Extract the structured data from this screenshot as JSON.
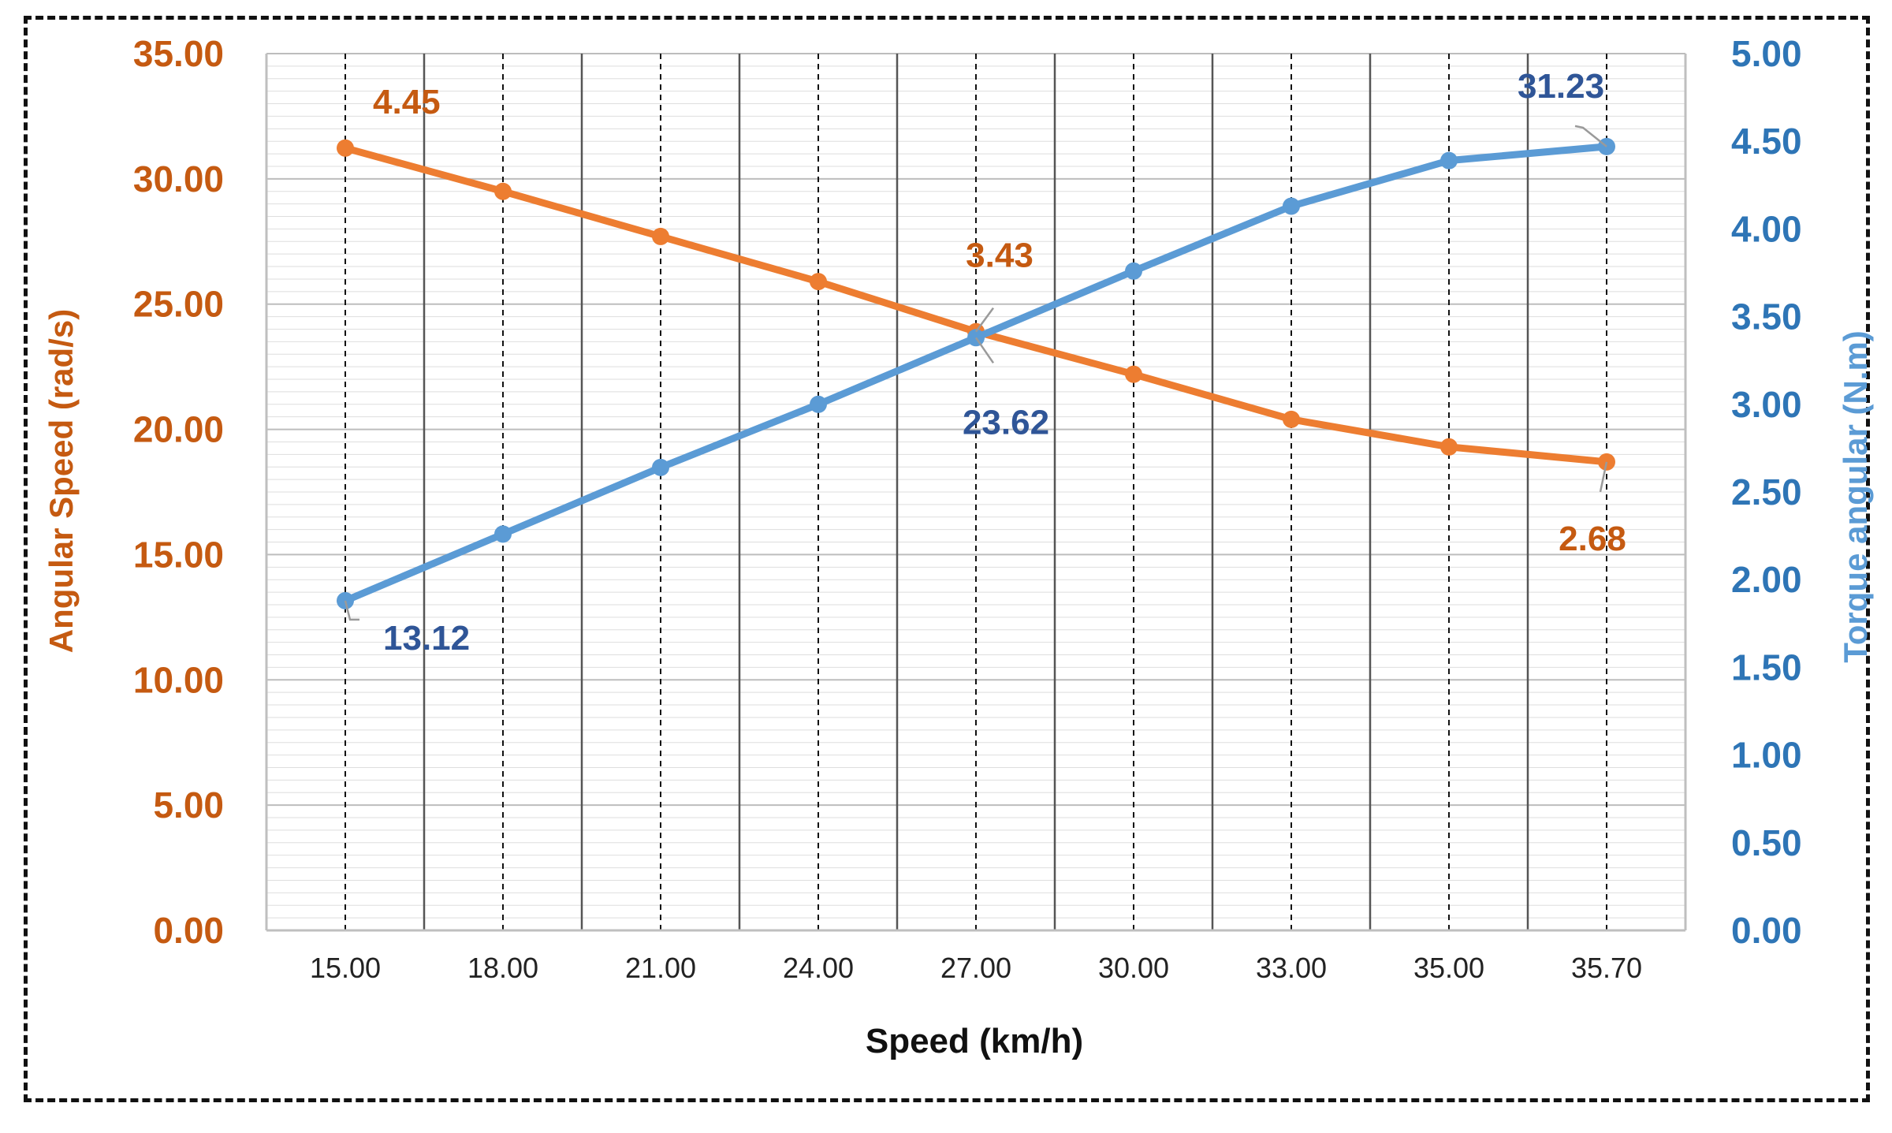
{
  "chart_data": {
    "type": "line",
    "title": "",
    "xlabel": "Speed (km/h)",
    "ylabel_left": "Angular Speed (rad/s)",
    "ylabel_right": "Torque angular (N.m)",
    "categories": [
      "15.00",
      "18.00",
      "21.00",
      "24.00",
      "27.00",
      "30.00",
      "33.00",
      "35.00",
      "35.70"
    ],
    "ylim_left": [
      0,
      35
    ],
    "ylim_right": [
      0,
      5
    ],
    "yticks_left": [
      "0.00",
      "5.00",
      "10.00",
      "15.00",
      "20.00",
      "25.00",
      "30.00",
      "35.00"
    ],
    "yticks_right": [
      "0.00",
      "0.50",
      "1.00",
      "1.50",
      "2.00",
      "2.50",
      "3.00",
      "3.50",
      "4.00",
      "4.50",
      "5.00"
    ],
    "grid": true,
    "series": [
      {
        "name": "Angular Speed",
        "axis": "left",
        "color": "#ED7D31",
        "values": [
          31.23,
          29.5,
          27.7,
          25.9,
          23.9,
          22.2,
          20.4,
          19.3,
          18.7
        ]
      },
      {
        "name": "Torque angular",
        "axis": "right",
        "color": "#5B9BD5",
        "values": [
          1.88,
          2.26,
          2.64,
          3.0,
          3.38,
          3.76,
          4.13,
          4.39,
          4.47
        ]
      }
    ],
    "annotations": [
      {
        "text": "4.45",
        "series": 0,
        "index": 0,
        "color": "#C55A11"
      },
      {
        "text": "3.43",
        "series": 0,
        "index": 4,
        "color": "#C55A11"
      },
      {
        "text": "2.68",
        "series": 0,
        "index": 8,
        "color": "#C55A11"
      },
      {
        "text": "13.12",
        "series": 1,
        "index": 0,
        "color": "#2F5597"
      },
      {
        "text": "23.62",
        "series": 1,
        "index": 4,
        "color": "#2F5597"
      },
      {
        "text": "31.23",
        "series": 1,
        "index": 8,
        "color": "#2F5597"
      }
    ],
    "colors": {
      "left_axis_text": "#C55A11",
      "right_axis_text": "#2E75B6",
      "axis_label_left": "#C55A11",
      "axis_label_right": "#5B9BD5"
    }
  }
}
